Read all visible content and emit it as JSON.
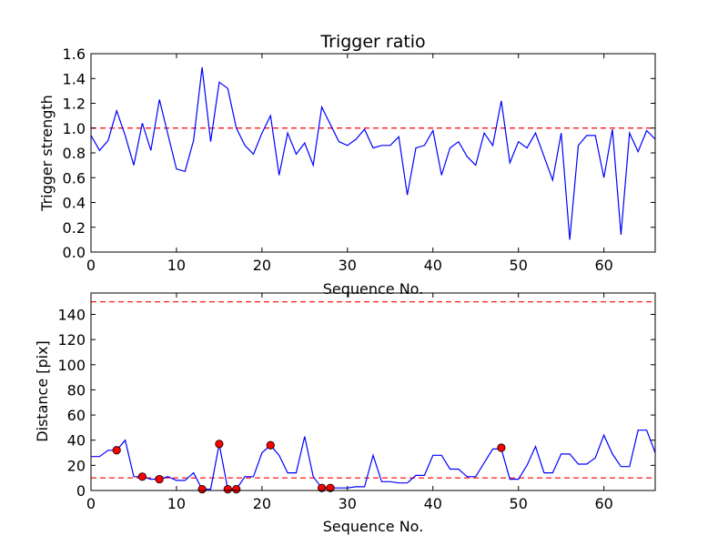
{
  "chart_data": [
    {
      "type": "line",
      "title": "Trigger ratio",
      "xlabel": "Sequence No.",
      "ylabel": "Trigger strength",
      "xlim": [
        0,
        66
      ],
      "ylim": [
        0,
        1.6
      ],
      "xticks": [
        0,
        10,
        20,
        30,
        40,
        50,
        60
      ],
      "yticks": [
        0.0,
        0.2,
        0.4,
        0.6,
        0.8,
        1.0,
        1.2,
        1.4,
        1.6
      ],
      "xtick_labels": [
        "0",
        "10",
        "20",
        "30",
        "40",
        "50",
        "60"
      ],
      "ytick_labels": [
        "0.0",
        "0.2",
        "0.4",
        "0.6",
        "0.8",
        "1.0",
        "1.2",
        "1.4",
        "1.6"
      ],
      "grid": false,
      "series": [
        {
          "color": "#0000ff",
          "style": "solid",
          "x": [
            0,
            1,
            2,
            3,
            4,
            5,
            6,
            7,
            8,
            9,
            10,
            11,
            12,
            13,
            14,
            15,
            16,
            17,
            18,
            19,
            20,
            21,
            22,
            23,
            24,
            25,
            26,
            27,
            28,
            29,
            30,
            31,
            32,
            33,
            34,
            35,
            36,
            37,
            38,
            39,
            40,
            41,
            42,
            43,
            44,
            45,
            46,
            47,
            48,
            49,
            50,
            51,
            52,
            53,
            54,
            55,
            56,
            57,
            58,
            59,
            60,
            61,
            62,
            63,
            64,
            65,
            66
          ],
          "y": [
            0.94,
            0.82,
            0.9,
            1.14,
            0.94,
            0.7,
            1.04,
            0.82,
            1.23,
            0.95,
            0.67,
            0.65,
            0.9,
            1.49,
            0.89,
            1.37,
            1.32,
            1.0,
            0.86,
            0.79,
            0.96,
            1.1,
            0.62,
            0.96,
            0.79,
            0.88,
            0.7,
            1.17,
            1.03,
            0.89,
            0.86,
            0.91,
            0.99,
            0.84,
            0.86,
            0.86,
            0.93,
            0.46,
            0.84,
            0.86,
            0.98,
            0.62,
            0.84,
            0.89,
            0.77,
            0.7,
            0.96,
            0.86,
            1.22,
            0.72,
            0.89,
            0.84,
            0.96,
            0.77,
            0.58,
            0.96,
            0.1,
            0.86,
            0.94,
            0.94,
            0.6,
            0.99,
            0.14,
            0.96,
            0.81,
            0.98,
            0.91
          ]
        }
      ],
      "reference_lines": [
        {
          "y": 1.0,
          "color": "#ff0000",
          "style": "dashed"
        }
      ]
    },
    {
      "type": "line",
      "title": "",
      "xlabel": "Sequence No.",
      "ylabel": "Distance [pix]",
      "xlim": [
        0,
        66
      ],
      "ylim": [
        0,
        157
      ],
      "xticks": [
        0,
        10,
        20,
        30,
        40,
        50,
        60
      ],
      "yticks": [
        0,
        20,
        40,
        60,
        80,
        100,
        120,
        140
      ],
      "xtick_labels": [
        "0",
        "10",
        "20",
        "30",
        "40",
        "50",
        "60"
      ],
      "ytick_labels": [
        "0",
        "20",
        "40",
        "60",
        "80",
        "100",
        "120",
        "140"
      ],
      "grid": false,
      "series": [
        {
          "color": "#0000ff",
          "style": "solid",
          "x": [
            0,
            1,
            2,
            3,
            4,
            5,
            6,
            7,
            8,
            9,
            10,
            11,
            12,
            13,
            14,
            15,
            16,
            17,
            18,
            19,
            20,
            21,
            22,
            23,
            24,
            25,
            26,
            27,
            28,
            29,
            30,
            31,
            32,
            33,
            34,
            35,
            36,
            37,
            38,
            39,
            40,
            41,
            42,
            43,
            44,
            45,
            46,
            47,
            48,
            49,
            50,
            51,
            52,
            53,
            54,
            55,
            56,
            57,
            58,
            59,
            60,
            61,
            62,
            63,
            64,
            65,
            66
          ],
          "y": [
            27,
            27,
            32,
            32,
            40,
            11,
            11,
            9,
            9,
            11,
            8,
            8,
            14,
            1,
            1,
            37,
            1,
            1,
            11,
            11,
            30,
            36,
            28,
            14,
            14,
            43,
            11,
            2,
            2,
            2,
            2,
            3,
            3,
            28,
            7,
            7,
            6,
            6,
            12,
            12,
            28,
            28,
            17,
            17,
            11,
            11,
            22,
            33,
            33,
            9,
            9,
            20,
            35,
            14,
            14,
            29,
            29,
            21,
            21,
            26,
            44,
            29,
            19,
            19,
            48,
            48,
            30
          ]
        },
        {
          "type": "scatter",
          "marker": "circle",
          "color": "#ff0000",
          "x": [
            3,
            6,
            8,
            13,
            15,
            16,
            17,
            21,
            27,
            28,
            48
          ],
          "y": [
            32,
            11,
            9,
            1,
            37,
            1,
            1,
            36,
            2,
            2,
            34
          ]
        }
      ],
      "reference_lines": [
        {
          "y": 150,
          "color": "#ff0000",
          "style": "dashed"
        },
        {
          "y": 10,
          "color": "#ff0000",
          "style": "dashed"
        }
      ]
    }
  ]
}
